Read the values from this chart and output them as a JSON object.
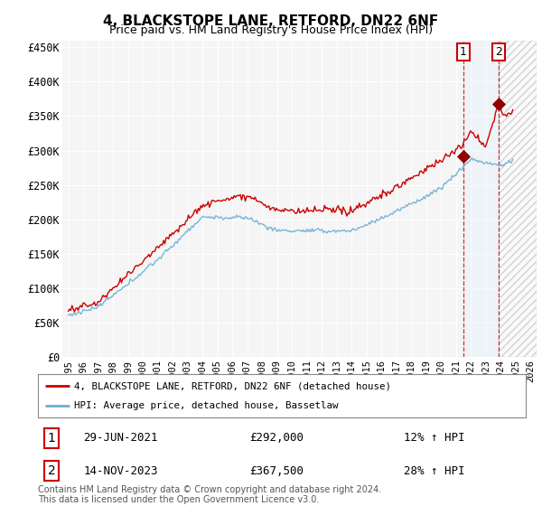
{
  "title": "4, BLACKSTOPE LANE, RETFORD, DN22 6NF",
  "subtitle": "Price paid vs. HM Land Registry's House Price Index (HPI)",
  "ylabel_ticks": [
    "£0",
    "£50K",
    "£100K",
    "£150K",
    "£200K",
    "£250K",
    "£300K",
    "£350K",
    "£400K",
    "£450K"
  ],
  "ytick_values": [
    0,
    50000,
    100000,
    150000,
    200000,
    250000,
    300000,
    350000,
    400000,
    450000
  ],
  "ylim": [
    0,
    460000
  ],
  "xlim_start": 1994.6,
  "xlim_end": 2026.4,
  "hpi_color": "#6baed6",
  "price_color": "#cc0000",
  "marker_color": "#990000",
  "vline_color": "#cc0000",
  "shade_color": "#ddeeff",
  "hatch_color": "#cccccc",
  "sale1_x": 2021.49,
  "sale1_y": 292000,
  "sale2_x": 2023.87,
  "sale2_y": 367500,
  "legend_label1": "4, BLACKSTOPE LANE, RETFORD, DN22 6NF (detached house)",
  "legend_label2": "HPI: Average price, detached house, Bassetlaw",
  "table_row1_num": "1",
  "table_row1_date": "29-JUN-2021",
  "table_row1_price": "£292,000",
  "table_row1_hpi": "12% ↑ HPI",
  "table_row2_num": "2",
  "table_row2_date": "14-NOV-2023",
  "table_row2_price": "£367,500",
  "table_row2_hpi": "28% ↑ HPI",
  "footer": "Contains HM Land Registry data © Crown copyright and database right 2024.\nThis data is licensed under the Open Government Licence v3.0.",
  "background_color": "#ffffff",
  "plot_bg_color": "#f5f5f5"
}
